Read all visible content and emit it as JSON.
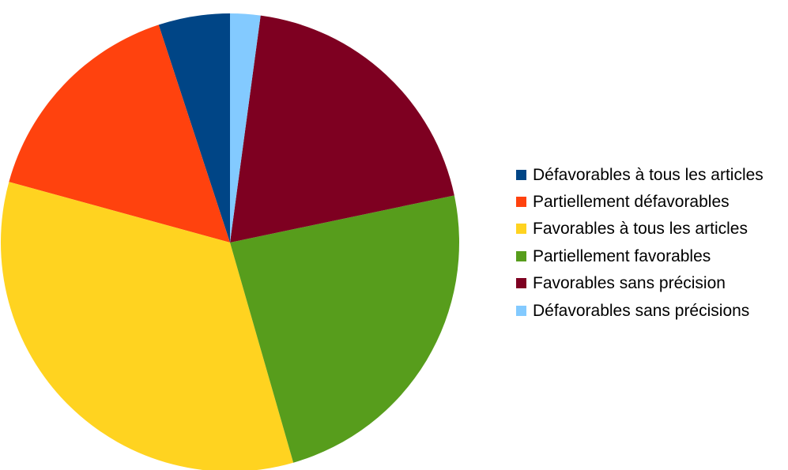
{
  "chart_data": {
    "type": "pie",
    "categories": [
      "Défavorables à tous les articles",
      "Partiellement défavorables",
      "Favorables à tous les articles",
      "Partiellement favorables",
      "Favorables sans précision",
      "Défavorables sans précisions"
    ],
    "values": [
      5.2,
      16.2,
      34.8,
      24.6,
      20.2,
      2.2
    ],
    "unit": "%",
    "colors": [
      "#004586",
      "#ff420e",
      "#ffd320",
      "#579d1c",
      "#7e0021",
      "#83caff"
    ],
    "legend_position": "right",
    "start_angle_deg": 0,
    "direction": "counterclockwise",
    "title": "",
    "grid": false
  }
}
